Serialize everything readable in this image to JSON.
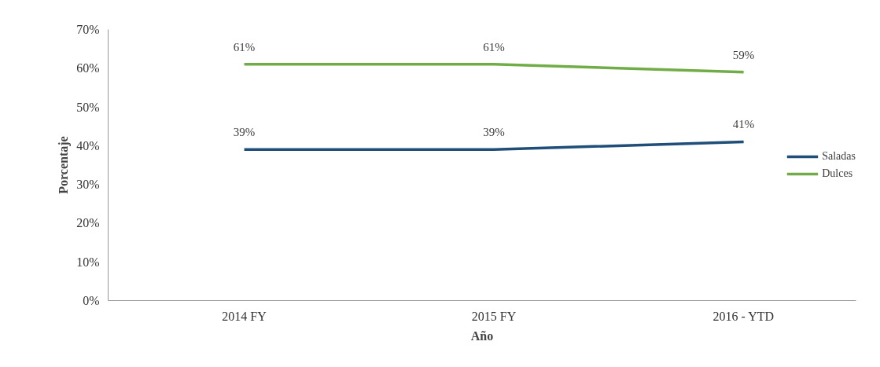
{
  "chart_data": {
    "type": "line",
    "xlabel": "Año",
    "ylabel": "Porcentaje",
    "categories": [
      "2014 FY",
      "2015 FY",
      "2016 - YTD"
    ],
    "series": [
      {
        "name": "Saladas",
        "color": "#1f4e79",
        "values": [
          39,
          39,
          41
        ],
        "value_labels": [
          "39%",
          "39%",
          "41%"
        ]
      },
      {
        "name": "Dulces",
        "color": "#70ad47",
        "values": [
          61,
          61,
          59
        ],
        "value_labels": [
          "61%",
          "61%",
          "59%"
        ]
      }
    ],
    "ylim": [
      0,
      70
    ],
    "yticks": [
      {
        "value": 0,
        "label": "0%"
      },
      {
        "value": 10,
        "label": "10%"
      },
      {
        "value": 20,
        "label": "20%"
      },
      {
        "value": 30,
        "label": "30%"
      },
      {
        "value": 40,
        "label": "40%"
      },
      {
        "value": 50,
        "label": "50%"
      },
      {
        "value": 60,
        "label": "60%"
      },
      {
        "value": 70,
        "label": "70%"
      }
    ],
    "grid": false,
    "legend": "right",
    "marker": "none",
    "line_style": "solid"
  }
}
